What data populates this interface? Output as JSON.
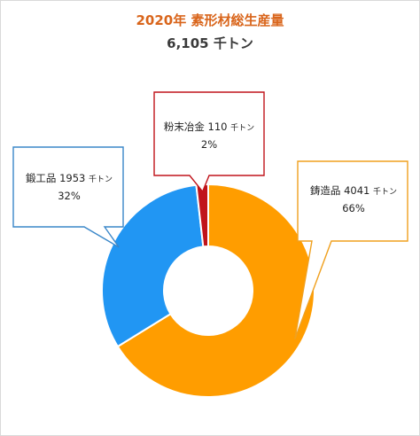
{
  "chart_data": {
    "type": "pie",
    "variant": "doughnut",
    "title": "2020年 素形材総生産量",
    "subtitle": "6,105 千トン",
    "unit": "千トン",
    "slices": [
      {
        "label": "鋳造品",
        "value": 4041,
        "percent": "66%",
        "color": "#ff9d00"
      },
      {
        "label": "鍛工品",
        "value": 1953,
        "percent": "32%",
        "color": "#2196f3"
      },
      {
        "label": "粉末冶金",
        "value": 110,
        "percent": "2%",
        "color": "#c0141b"
      }
    ],
    "callout_border_colors": {
      "鋳造品": "#f0a01e",
      "鍛工品": "#3a87c9",
      "粉末冶金": "#c0141b"
    }
  }
}
